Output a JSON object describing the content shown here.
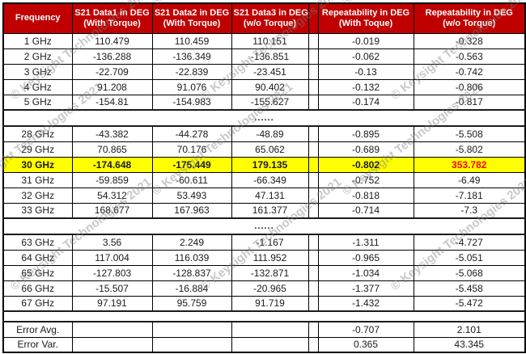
{
  "watermark": {
    "text": "© Keysight Technologies 2021"
  },
  "colors": {
    "header_bg": "#C00000",
    "header_text": "#FFFFFF",
    "highlight_bg": "#FFFF00",
    "alert_text": "#FF0000",
    "grid": "#000000"
  },
  "table": {
    "headers": [
      {
        "line1": "Frequency",
        "line2": ""
      },
      {
        "line1": "S21 Data1 in DEG",
        "line2": "(With Torque)"
      },
      {
        "line1": "S21 Data2 in DEG",
        "line2": "(With Torque)"
      },
      {
        "line1": "S21 Data3 in DEG",
        "line2": "(w/o Torque)"
      },
      {
        "line1": "Repeatability in DEG",
        "line2": "(With Toque)"
      },
      {
        "line1": "Repeatability in DEG",
        "line2": "(w/o Torque)"
      }
    ],
    "separator_text": "......",
    "groups": [
      {
        "rows": [
          {
            "freq": "1 GHz",
            "values": [
              "110.479",
              "110.459",
              "110.151",
              "-0.019",
              "-0.328"
            ]
          },
          {
            "freq": "2 GHz",
            "values": [
              "-136.288",
              "-136.349",
              "-136.851",
              "-0.062",
              "-0.563"
            ]
          },
          {
            "freq": "3 GHz",
            "values": [
              "-22.709",
              "-22.839",
              "-23.451",
              "-0.13",
              "-0.742"
            ]
          },
          {
            "freq": "4 GHz",
            "values": [
              "91.208",
              "91.076",
              "90.402",
              "-0.132",
              "-0.806"
            ]
          },
          {
            "freq": "5 GHz",
            "values": [
              "-154.81",
              "-154.983",
              "-155.627",
              "-0.174",
              "-0.817"
            ]
          }
        ]
      },
      {
        "rows": [
          {
            "freq": "28 GHz",
            "values": [
              "-43.382",
              "-44.278",
              "-48.89",
              "-0.895",
              "-5.508"
            ]
          },
          {
            "freq": "29 GHz",
            "values": [
              "70.865",
              "70.176",
              "65.062",
              "-0.689",
              "-5.802"
            ]
          },
          {
            "freq": "30 GHz",
            "values": [
              "-174.648",
              "-175.449",
              "179.135",
              "-0.802",
              "353.782"
            ],
            "highlight": true,
            "alert": true
          },
          {
            "freq": "31 GHz",
            "values": [
              "-59.859",
              "-60.611",
              "-66.349",
              "-0.752",
              "-6.49"
            ]
          },
          {
            "freq": "32 GHz",
            "values": [
              "54.312",
              "53.493",
              "47.131",
              "-0.818",
              "-7.181"
            ]
          },
          {
            "freq": "33 GHz",
            "values": [
              "168.677",
              "167.963",
              "161.377",
              "-0.714",
              "-7.3"
            ]
          }
        ]
      },
      {
        "rows": [
          {
            "freq": "63 GHz",
            "values": [
              "3.56",
              "2.249",
              "-1.167",
              "-1.311",
              "-4.727"
            ]
          },
          {
            "freq": "64 GHz",
            "values": [
              "117.004",
              "116.039",
              "111.952",
              "-0.965",
              "-5.051"
            ]
          },
          {
            "freq": "65 GHz",
            "values": [
              "-127.803",
              "-128.837",
              "-132.871",
              "-1.034",
              "-5.068"
            ]
          },
          {
            "freq": "66 GHz",
            "values": [
              "-15.507",
              "-16.884",
              "-20.965",
              "-1.377",
              "-5.458"
            ]
          },
          {
            "freq": "67 GHz",
            "values": [
              "97.191",
              "95.759",
              "91.719",
              "-1.432",
              "-5.472"
            ]
          }
        ]
      }
    ],
    "footer_rows": [
      {
        "label": "Error Avg.",
        "values": [
          "",
          "",
          "",
          "-0.707",
          "2.101"
        ]
      },
      {
        "label": "Error Var.",
        "values": [
          "",
          "",
          "",
          "0.365",
          "43.345"
        ]
      }
    ]
  }
}
